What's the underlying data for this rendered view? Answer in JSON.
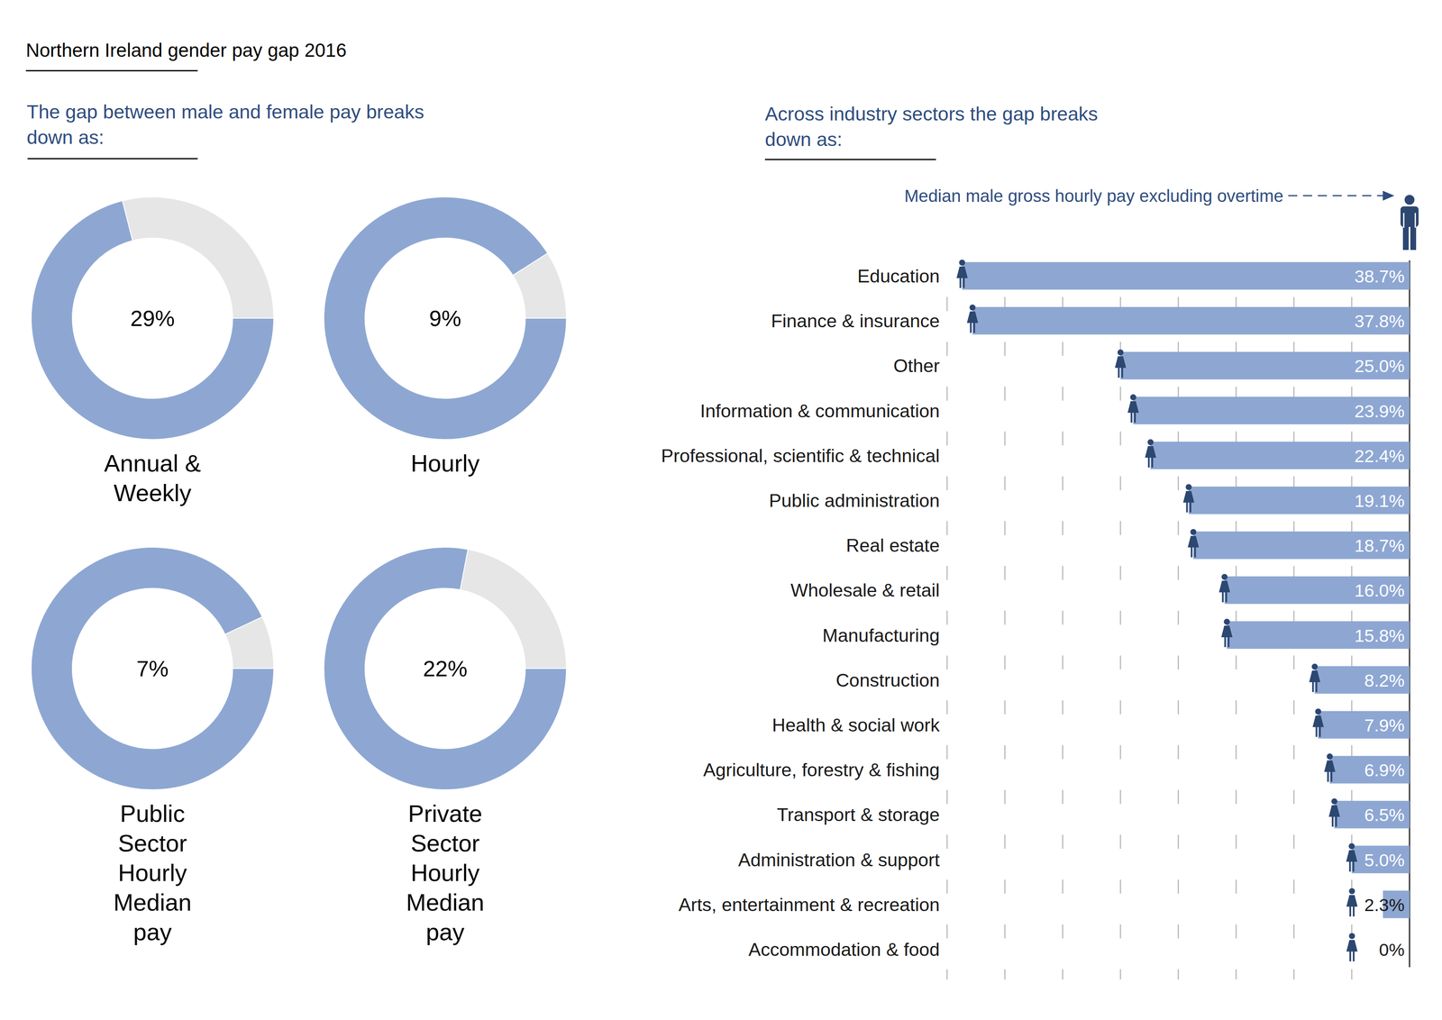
{
  "header": {
    "title": "Northern Ireland gender pay gap 2016",
    "left_heading": [
      "The gap between male and female pay breaks",
      "down as:"
    ],
    "right_heading": [
      "Across industry sectors the gap breaks",
      "down as:"
    ]
  },
  "chart_data": [
    {
      "type": "pie",
      "title": [
        "Annual &",
        "Weekly"
      ],
      "values": [
        29,
        71
      ],
      "value_labels": [
        "29%",
        null
      ],
      "colors": [
        "#e6e6e6",
        "#8ea7d2"
      ]
    },
    {
      "type": "pie",
      "title": [
        "Hourly"
      ],
      "values": [
        9,
        91
      ],
      "value_labels": [
        "9%",
        null
      ],
      "colors": [
        "#e6e6e6",
        "#8ea7d2"
      ]
    },
    {
      "type": "pie",
      "title": [
        "Public",
        "Sector",
        "Hourly",
        "Median",
        "pay"
      ],
      "values": [
        7,
        93
      ],
      "value_labels": [
        "7%",
        null
      ],
      "colors": [
        "#e6e6e6",
        "#8ea7d2"
      ]
    },
    {
      "type": "pie",
      "title": [
        "Private",
        "Sector",
        "Hourly",
        "Median",
        "pay"
      ],
      "values": [
        22,
        78
      ],
      "value_labels": [
        "22%",
        null
      ],
      "colors": [
        "#e6e6e6",
        "#8ea7d2"
      ]
    },
    {
      "type": "bar",
      "orientation": "horizontal",
      "annotation": "Median male gross hourly pay excluding overtime",
      "categories": [
        "Education",
        "Finance & insurance",
        "Other",
        "Information & communication",
        "Professional, scientific & technical",
        "Public administration",
        "Real estate",
        "Wholesale & retail",
        "Manufacturing",
        "Construction",
        "Health & social work",
        "Agriculture, forestry & fishing",
        "Transport & storage",
        "Administration & support",
        "Arts, entertainment & recreation",
        "Accommodation & food"
      ],
      "values": [
        38.7,
        37.8,
        25.0,
        23.9,
        22.4,
        19.1,
        18.7,
        16.0,
        15.8,
        8.2,
        7.9,
        6.9,
        6.5,
        5.0,
        2.3,
        0
      ],
      "value_labels": [
        "38.7%",
        "37.8%",
        "25.0%",
        "23.9%",
        "22.4%",
        "19.1%",
        "18.7%",
        "16.0%",
        "15.8%",
        "8.2%",
        "7.9%",
        "6.9%",
        "6.5%",
        "5.0%",
        "2.3%",
        "0%"
      ],
      "color": "#8ea7d2",
      "xlim": [
        40,
        0
      ],
      "xticks": [
        40,
        35,
        30,
        25,
        20,
        15,
        10,
        5,
        0
      ],
      "grid": true,
      "tick_labels": false,
      "data_labels": true
    }
  ]
}
